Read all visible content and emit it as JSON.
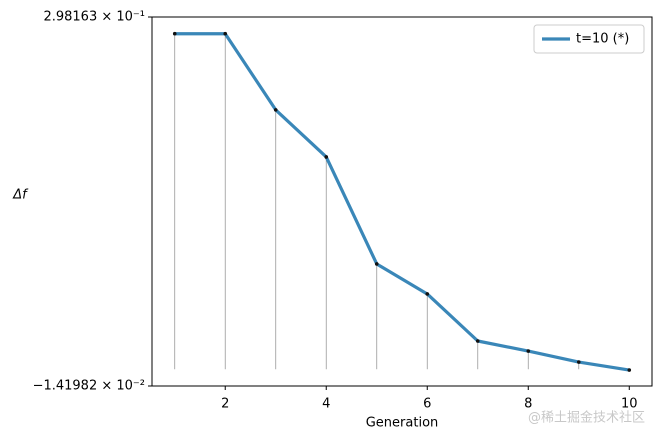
{
  "chart_data": {
    "type": "line",
    "xlabel": "Generation",
    "ylabel": "Δf",
    "x": [
      1,
      2,
      3,
      4,
      5,
      6,
      7,
      8,
      9,
      10
    ],
    "series": [
      {
        "name": "t=10 (*)",
        "color": "#3a87b8",
        "values": [
          0.284,
          0.284,
          0.2195,
          0.1797,
          0.0891,
          0.0637,
          0.0239,
          0.0154,
          0.0061,
          -0.0007
        ]
      }
    ],
    "xlim": [
      0.55,
      10.45
    ],
    "xticks": [
      2,
      4,
      6,
      8,
      10
    ],
    "ylim": [
      -0.0141982,
      0.298163
    ],
    "yticks": [
      {
        "value": -0.0141982,
        "label": "−1.41982 × 10⁻²"
      },
      {
        "value": 0.298163,
        "label": "2.98163 × 10⁻¹"
      }
    ],
    "legend": "upper right",
    "stems": true,
    "markers": true
  },
  "watermark": "@稀土掘金技术社区"
}
